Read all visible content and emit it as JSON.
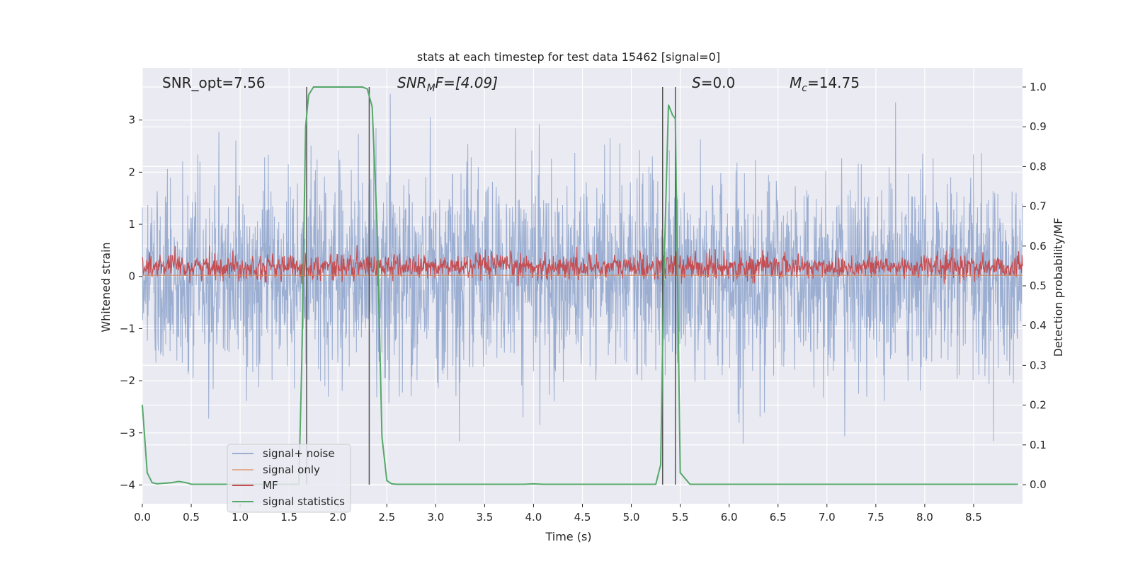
{
  "chart_data": {
    "type": "line",
    "title": "stats at each timestep for test data 15462 [signal=0]",
    "xlabel": "Time (s)",
    "ylabel_left": "Whitened strain",
    "ylabel_right": "Detection probability/MF",
    "xlim": [
      0.0,
      9.0
    ],
    "ylim_left": [
      -4.36,
      4.0
    ],
    "ylim_right": [
      -0.048,
      1.048
    ],
    "x_ticks": [
      0.0,
      0.5,
      1.0,
      1.5,
      2.0,
      2.5,
      3.0,
      3.5,
      4.0,
      4.5,
      5.0,
      5.5,
      6.0,
      6.5,
      7.0,
      7.5,
      8.0,
      8.5
    ],
    "x_tick_labels": [
      "0.0",
      "0.5",
      "1.0",
      "1.5",
      "2.0",
      "2.5",
      "3.0",
      "3.5",
      "4.0",
      "4.5",
      "5.0",
      "5.5",
      "6.0",
      "6.5",
      "7.0",
      "7.5",
      "8.0",
      "8.5"
    ],
    "y_left_ticks": [
      3,
      2,
      1,
      0,
      -1,
      -2,
      -3,
      -4
    ],
    "y_left_tick_labels": [
      "3",
      "2",
      "1",
      "0",
      "−1",
      "−2",
      "−3",
      "−4"
    ],
    "y_right_ticks": [
      1.0,
      0.9,
      0.8,
      0.7,
      0.6,
      0.5,
      0.4,
      0.3,
      0.2,
      0.1,
      0.0
    ],
    "y_right_tick_labels": [
      "1.0",
      "0.9",
      "0.8",
      "0.7",
      "0.6",
      "0.5",
      "0.4",
      "0.3",
      "0.2",
      "0.1",
      "0.0"
    ],
    "annotations": {
      "snr_opt": "SNR_opt=7.56",
      "snr_mf_main": "SNR",
      "snr_mf_sub": "M",
      "snr_mf_rest": "F=[4.09]",
      "s_main": "S",
      "s_rest": "=0.0",
      "mc_main": "M",
      "mc_sub": "c",
      "mc_rest": "=14.75"
    },
    "series": [
      {
        "name": "signal+ noise",
        "color": "#4c72b0",
        "description": "whitened noisy strain, roughly Gaussian with std ~0.9, range about -3.6 to 3.5"
      },
      {
        "name": "signal only",
        "color": "#dd8452",
        "description": "flat near 0"
      },
      {
        "name": "MF",
        "color": "#c44e52",
        "description": "matched filter output on right axis, oscillating between about 0.5 and 0.6"
      },
      {
        "name": "signal statistics",
        "color": "#55a868",
        "x": [
          0.0,
          0.05,
          0.1,
          0.15,
          0.2,
          0.3,
          0.37,
          0.45,
          0.5,
          0.6,
          0.8,
          1.0,
          1.2,
          1.4,
          1.6,
          1.63,
          1.67,
          1.7,
          1.75,
          2.0,
          2.2,
          2.25,
          2.3,
          2.35,
          2.4,
          2.45,
          2.5,
          2.55,
          2.6,
          3.0,
          3.5,
          3.9,
          4.0,
          4.1,
          4.5,
          5.0,
          5.25,
          5.3,
          5.33,
          5.38,
          5.42,
          5.45,
          5.5,
          5.6,
          6.0,
          7.0,
          8.0,
          8.95
        ],
        "y": [
          0.2,
          0.03,
          0.005,
          0.002,
          0.003,
          0.005,
          0.008,
          0.005,
          0.001,
          0.001,
          0.001,
          0.001,
          0.001,
          0.001,
          0.001,
          0.3,
          0.9,
          0.98,
          1.0,
          1.0,
          1.0,
          1.0,
          0.995,
          0.95,
          0.65,
          0.12,
          0.01,
          0.002,
          0.001,
          0.001,
          0.001,
          0.001,
          0.002,
          0.001,
          0.001,
          0.001,
          0.001,
          0.05,
          0.5,
          0.955,
          0.93,
          0.92,
          0.03,
          0.001,
          0.001,
          0.001,
          0.001,
          0.001
        ]
      }
    ],
    "vlines": [
      1.68,
      2.32,
      5.32,
      5.45
    ],
    "legend": {
      "location": "lower-left",
      "entries": [
        "signal+ noise",
        "signal only",
        "MF",
        "signal statistics"
      ]
    },
    "grid": true,
    "background": "#eaeaf2"
  }
}
